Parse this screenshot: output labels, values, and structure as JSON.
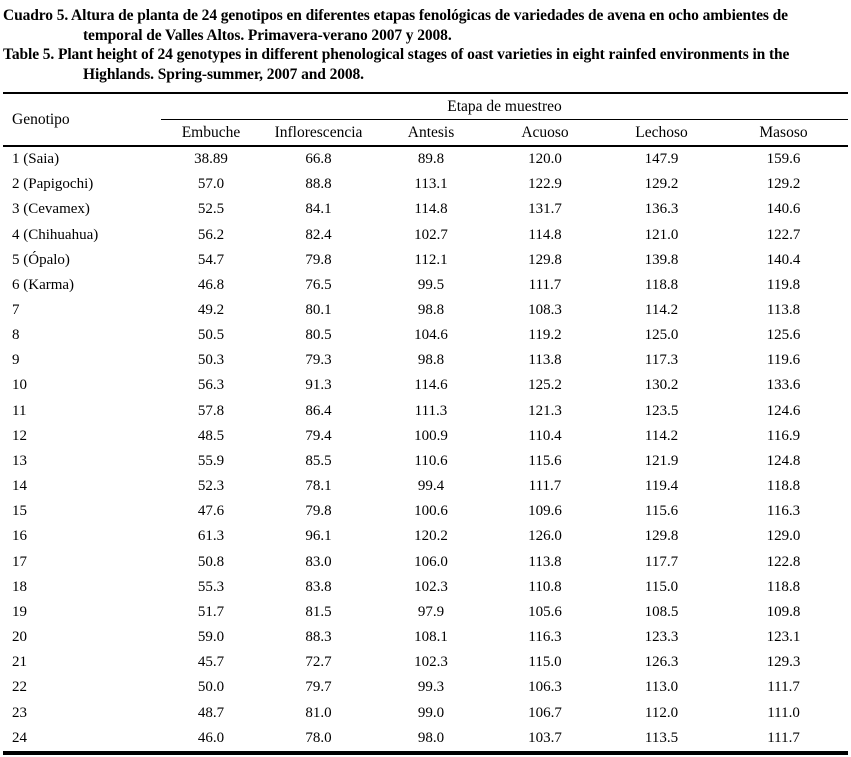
{
  "captions": {
    "spanish": [
      "Cuadro 5. Altura de planta de 24 genotipos en diferentes etapas fenológicas de variedades de avena en ocho ambientes de",
      "temporal de Valles Altos. Primavera-verano 2007 y 2008."
    ],
    "english": [
      "Table 5. Plant height of 24 genotypes in different phenological stages of oast varieties in eight rainfed environments in the",
      "Highlands. Spring-summer, 2007 and 2008."
    ]
  },
  "table": {
    "genotype_header": "Genotipo",
    "group_header": "Etapa de muestreo",
    "columns": [
      "Embuche",
      "Inflorescencia",
      "Antesis",
      "Acuoso",
      "Lechoso",
      "Masoso"
    ],
    "rows": [
      {
        "genotype": "1 (Saia)",
        "values": [
          "38.89",
          "66.8",
          "89.8",
          "120.0",
          "147.9",
          "159.6"
        ]
      },
      {
        "genotype": "2 (Papigochi)",
        "values": [
          "57.0",
          "88.8",
          "113.1",
          "122.9",
          "129.2",
          "129.2"
        ]
      },
      {
        "genotype": "3 (Cevamex)",
        "values": [
          "52.5",
          "84.1",
          "114.8",
          "131.7",
          "136.3",
          "140.6"
        ]
      },
      {
        "genotype": "4 (Chihuahua)",
        "values": [
          "56.2",
          "82.4",
          "102.7",
          "114.8",
          "121.0",
          "122.7"
        ]
      },
      {
        "genotype": "5 (Ópalo)",
        "values": [
          "54.7",
          "79.8",
          "112.1",
          "129.8",
          "139.8",
          "140.4"
        ]
      },
      {
        "genotype": "6 (Karma)",
        "values": [
          "46.8",
          "76.5",
          "99.5",
          "111.7",
          "118.8",
          "119.8"
        ]
      },
      {
        "genotype": "7",
        "values": [
          "49.2",
          "80.1",
          "98.8",
          "108.3",
          "114.2",
          "113.8"
        ]
      },
      {
        "genotype": "8",
        "values": [
          "50.5",
          "80.5",
          "104.6",
          "119.2",
          "125.0",
          "125.6"
        ]
      },
      {
        "genotype": "9",
        "values": [
          "50.3",
          "79.3",
          "98.8",
          "113.8",
          "117.3",
          "119.6"
        ]
      },
      {
        "genotype": "10",
        "values": [
          "56.3",
          "91.3",
          "114.6",
          "125.2",
          "130.2",
          "133.6"
        ]
      },
      {
        "genotype": "11",
        "values": [
          "57.8",
          "86.4",
          "111.3",
          "121.3",
          "123.5",
          "124.6"
        ]
      },
      {
        "genotype": "12",
        "values": [
          "48.5",
          "79.4",
          "100.9",
          "110.4",
          "114.2",
          "116.9"
        ]
      },
      {
        "genotype": "13",
        "values": [
          "55.9",
          "85.5",
          "110.6",
          "115.6",
          "121.9",
          "124.8"
        ]
      },
      {
        "genotype": "14",
        "values": [
          "52.3",
          "78.1",
          "99.4",
          "111.7",
          "119.4",
          "118.8"
        ]
      },
      {
        "genotype": "15",
        "values": [
          "47.6",
          "79.8",
          "100.6",
          "109.6",
          "115.6",
          "116.3"
        ]
      },
      {
        "genotype": "16",
        "values": [
          "61.3",
          "96.1",
          "120.2",
          "126.0",
          "129.8",
          "129.0"
        ]
      },
      {
        "genotype": "17",
        "values": [
          "50.8",
          "83.0",
          "106.0",
          "113.8",
          "117.7",
          "122.8"
        ]
      },
      {
        "genotype": "18",
        "values": [
          "55.3",
          "83.8",
          "102.3",
          "110.8",
          "115.0",
          "118.8"
        ]
      },
      {
        "genotype": "19",
        "values": [
          "51.7",
          "81.5",
          "97.9",
          "105.6",
          "108.5",
          "109.8"
        ]
      },
      {
        "genotype": "20",
        "values": [
          "59.0",
          "88.3",
          "108.1",
          "116.3",
          "123.3",
          "123.1"
        ]
      },
      {
        "genotype": "21",
        "values": [
          "45.7",
          "72.7",
          "102.3",
          "115.0",
          "126.3",
          "129.3"
        ]
      },
      {
        "genotype": "22",
        "values": [
          "50.0",
          "79.7",
          "99.3",
          "106.3",
          "113.0",
          "111.7"
        ]
      },
      {
        "genotype": "23",
        "values": [
          "48.7",
          "81.0",
          "99.0",
          "106.7",
          "112.0",
          "111.0"
        ]
      },
      {
        "genotype": "24",
        "values": [
          "46.0",
          "78.0",
          "98.0",
          "103.7",
          "113.5",
          "111.7"
        ]
      }
    ]
  }
}
